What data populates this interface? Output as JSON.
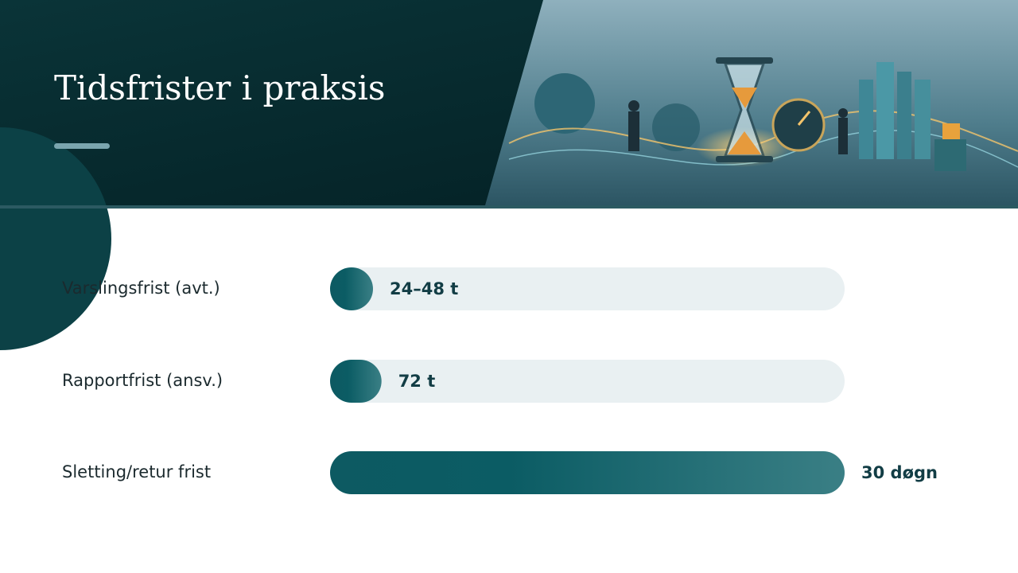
{
  "chart_data": {
    "type": "bar",
    "title": "Tidsfrister i praksis",
    "categories": [
      "Varslingsfrist (avt.)",
      "Rapportfrist (ansv.)",
      "Sletting/retur frist"
    ],
    "values": [
      48,
      72,
      720
    ],
    "value_labels": [
      "24–48 t",
      "72 t",
      "30 døgn"
    ],
    "xlim": [
      0,
      720
    ],
    "color": "#0d5c63",
    "track_color": "#e9f0f2"
  }
}
